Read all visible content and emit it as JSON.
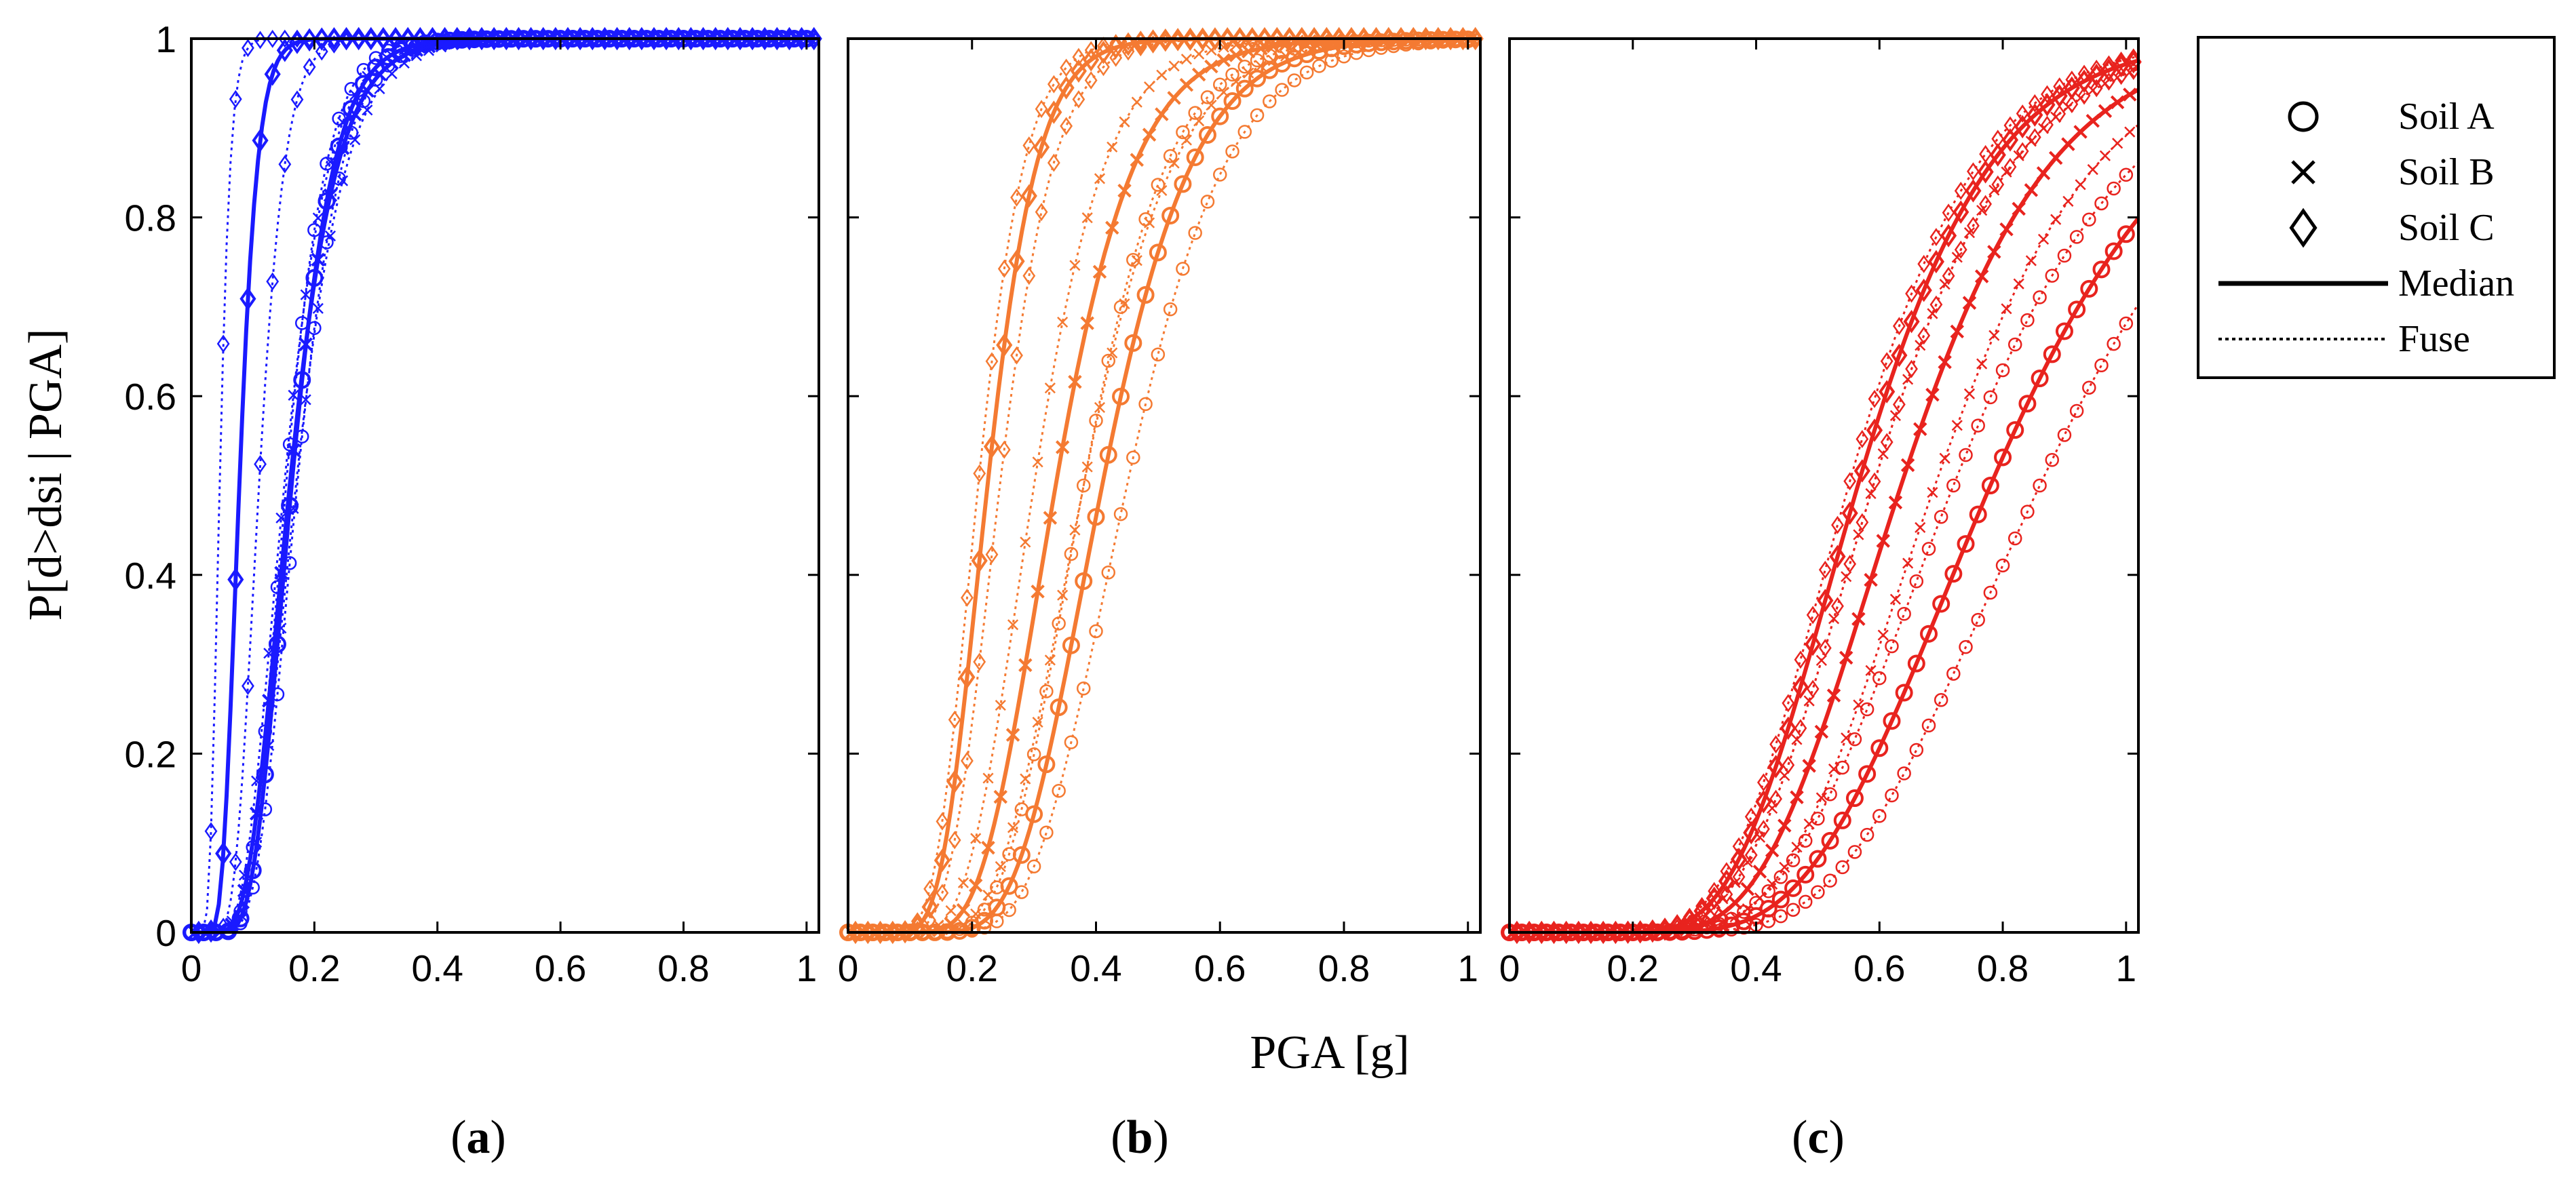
{
  "chart_data": {
    "type": "line",
    "title": "",
    "xlabel": "PGA [g]",
    "ylabel": "P[d>dsi | PGA]",
    "xlim": [
      0,
      1.02
    ],
    "ylim": [
      0,
      1
    ],
    "x_ticks": [
      "0",
      "0.2",
      "0.4",
      "0.6",
      "0.8",
      "1"
    ],
    "y_ticks": [
      "0",
      "0.2",
      "0.4",
      "0.6",
      "0.8",
      "1"
    ],
    "grid": false,
    "legend_position": "right",
    "legend": [
      {
        "label": "Soil A",
        "symbol": "circle"
      },
      {
        "label": "Soil B",
        "symbol": "cross"
      },
      {
        "label": "Soil C",
        "symbol": "diamond"
      },
      {
        "label": "Median",
        "symbol": "solid-line"
      },
      {
        "label": "Fuse",
        "symbol": "dotted-line"
      }
    ],
    "panels": [
      {
        "label_open": "(",
        "label_letter": "a",
        "label_close": ")",
        "color": "#1a1aff",
        "series": [
          {
            "soil": "Soil A",
            "marker": "circle",
            "median": 0.163,
            "lower": 0.154,
            "upper": 0.172,
            "beta": 0.33
          },
          {
            "soil": "Soil B",
            "marker": "cross",
            "median": 0.16,
            "lower": 0.151,
            "upper": 0.17,
            "beta": 0.37
          },
          {
            "soil": "Soil C",
            "marker": "diamond",
            "median": 0.078,
            "lower": 0.046,
            "upper": 0.11,
            "beta": 0.3
          }
        ]
      },
      {
        "label_open": "(",
        "label_letter": "b",
        "label_close": ")",
        "color": "#f47a32",
        "series": [
          {
            "soil": "Soil A",
            "marker": "circle",
            "median": 0.41,
            "lower": 0.38,
            "upper": 0.45,
            "beta": 0.28
          },
          {
            "soil": "Soil B",
            "marker": "cross",
            "median": 0.335,
            "lower": 0.3,
            "upper": 0.38,
            "beta": 0.3
          },
          {
            "soil": "Soil C",
            "marker": "diamond",
            "median": 0.225,
            "lower": 0.21,
            "upper": 0.245,
            "beta": 0.28
          }
        ]
      },
      {
        "label_open": "(",
        "label_letter": "c",
        "label_close": ")",
        "color": "#e8231e",
        "series": [
          {
            "soil": "Soil A",
            "marker": "circle",
            "median": 0.78,
            "lower": 0.72,
            "upper": 0.86,
            "beta": 0.32
          },
          {
            "soil": "Soil B",
            "marker": "cross",
            "median": 0.635,
            "lower": 0.59,
            "upper": 0.69,
            "beta": 0.3
          },
          {
            "soil": "Soil C",
            "marker": "diamond",
            "median": 0.565,
            "lower": 0.55,
            "upper": 0.59,
            "beta": 0.3
          }
        ]
      }
    ]
  }
}
